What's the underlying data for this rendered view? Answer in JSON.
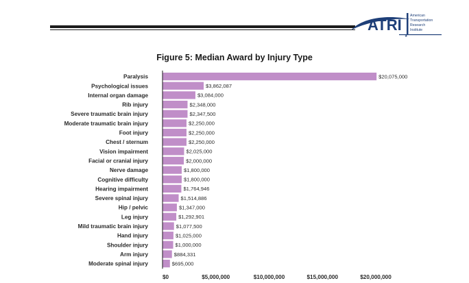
{
  "logo": {
    "name": "ATRI",
    "tagline": [
      "American",
      "Transportation",
      "Research",
      "Institute"
    ]
  },
  "chart_data": {
    "type": "bar",
    "orientation": "horizontal",
    "title": "Figure 5: Median Award by Injury Type",
    "categories": [
      "Paralysis",
      "Psychological issues",
      "Internal organ damage",
      "Rib injury",
      "Severe traumatic brain injury",
      "Moderate traumatic brain injury",
      "Foot injury",
      "Chest / sternum",
      "Vision impairment",
      "Facial or cranial injury",
      "Nerve damage",
      "Cognitive difficulty",
      "Hearing impairment",
      "Severe spinal injury",
      "Hip / pelvic",
      "Leg injury",
      "Mild traumatic brain injury",
      "Hand injury",
      "Shoulder injury",
      "Arm injury",
      "Moderate spinal injury"
    ],
    "values": [
      20075000,
      3862087,
      3084000,
      2348000,
      2347500,
      2250000,
      2250000,
      2250000,
      2025000,
      2000000,
      1800000,
      1800000,
      1764946,
      1514886,
      1347000,
      1292901,
      1077500,
      1025000,
      1000000,
      884331,
      695000
    ],
    "value_labels": [
      "$20,075,000",
      "$3,862,087",
      "$3,084,000",
      "$2,348,000",
      "$2,347,500",
      "$2,250,000",
      "$2,250,000",
      "$2,250,000",
      "$2,025,000",
      "$2,000,000",
      "$1,800,000",
      "$1,800,000",
      "$1,764,946",
      "$1,514,886",
      "$1,347,000",
      "$1,292,901",
      "$1,077,500",
      "$1,025,000",
      "$1,000,000",
      "$884,331",
      "$695,000"
    ],
    "xticks": [
      0,
      5000000,
      10000000,
      15000000,
      20000000
    ],
    "xtick_labels": [
      "$0",
      "$5,000,000",
      "$10,000,000",
      "$15,000,000",
      "$20,000,000"
    ],
    "xlim": [
      0,
      22500000
    ],
    "xlabel": "",
    "ylabel": "",
    "grid": false,
    "bar_color": "#c08ec8"
  }
}
